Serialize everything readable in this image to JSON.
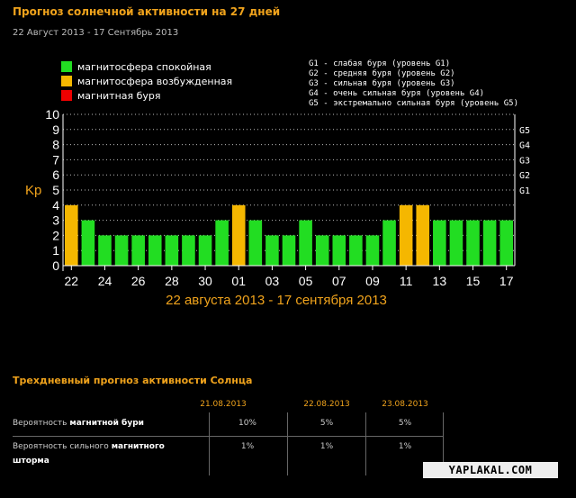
{
  "header": {
    "title": "Прогноз солнечной активности на 27 дней",
    "subtitle": "22 Август 2013 - 17 Сентябрь 2013"
  },
  "legend": [
    {
      "label": "магнитосфера спокойная",
      "color": "#22dd22"
    },
    {
      "label": "магнитосфера возбужденная",
      "color": "#f5b700"
    },
    {
      "label": "магнитная буря",
      "color": "#ee0000"
    }
  ],
  "g_levels": [
    "G1 - слабая буря (уровень G1)",
    "G2 - средняя буря (уровень G2)",
    "G3 - сильная буря (уровень G3)",
    "G4 - очень сильная буря (уровень G4)",
    "G5 - экстремально сильная буря (уровень G5)"
  ],
  "chart_data": {
    "type": "bar",
    "ylabel": "Kp",
    "xlabel": "22 августа 2013 - 17 сентября 2013",
    "ylim": [
      0,
      10
    ],
    "yticks": [
      "0",
      "1",
      "2",
      "3",
      "4",
      "5",
      "6",
      "7",
      "8",
      "9",
      "10"
    ],
    "right_ticks": [
      {
        "label": "G1",
        "value": 5
      },
      {
        "label": "G2",
        "value": 6
      },
      {
        "label": "G3",
        "value": 7
      },
      {
        "label": "G4",
        "value": 8
      },
      {
        "label": "G5",
        "value": 9
      }
    ],
    "xtick_labels": [
      "22",
      "24",
      "26",
      "28",
      "30",
      "01",
      "03",
      "05",
      "07",
      "09",
      "11",
      "13",
      "15",
      "17"
    ],
    "values": [
      4,
      3,
      2,
      2,
      2,
      2,
      2,
      2,
      2,
      3,
      4,
      3,
      2,
      2,
      3,
      2,
      2,
      2,
      2,
      3,
      4,
      4,
      3,
      3,
      3,
      3,
      3
    ],
    "colors": {
      "quiet": "#22dd22",
      "active": "#f5b700",
      "storm": "#ee0000"
    },
    "grid": true
  },
  "forecast": {
    "title": "Трехдневный прогноз активности Солнца",
    "dates": [
      "21.08.2013",
      "22.08.2013",
      "23.08.2013"
    ],
    "rows": [
      {
        "label_prefix": "Вероятность ",
        "label_bold": "магнитной бури",
        "label_suffix": "",
        "values": [
          "10%",
          "5%",
          "5%"
        ]
      },
      {
        "label_prefix": "Вероятность сильного ",
        "label_bold": "магнитного шторма",
        "label_suffix": "",
        "values": [
          "1%",
          "1%",
          "1%"
        ]
      }
    ]
  },
  "watermark": "YAPLAKAL.COM"
}
